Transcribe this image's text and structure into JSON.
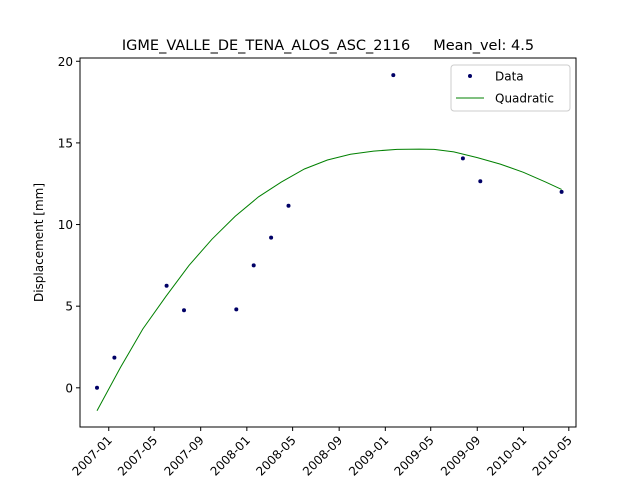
{
  "chart_data": {
    "type": "scatter",
    "title": "IGME_VALLE_DE_TENA_ALOS_ASC_2116     Mean_vel: 4.5",
    "xlabel": "",
    "ylabel": "Displacement [mm]",
    "xlim": [
      "2006-10-17",
      "2010-05-20"
    ],
    "ylim": [
      -2.4,
      20.2
    ],
    "x_ticks": [
      "2007-01",
      "2007-05",
      "2007-09",
      "2008-01",
      "2008-05",
      "2008-09",
      "2009-01",
      "2009-05",
      "2009-09",
      "2010-01",
      "2010-05"
    ],
    "y_ticks": [
      0,
      5,
      10,
      15,
      20
    ],
    "grid": false,
    "legend_position": "top-right",
    "colors": {
      "data": "#000066",
      "fit": "#008000"
    },
    "series": [
      {
        "name": "Data",
        "kind": "points",
        "x": [
          "2006-12-01",
          "2007-01-16",
          "2007-06-03",
          "2007-07-19",
          "2007-12-04",
          "2008-01-19",
          "2008-03-05",
          "2008-04-20",
          "2009-01-22",
          "2009-07-25",
          "2009-09-09",
          "2010-04-12"
        ],
        "y": [
          0.0,
          1.85,
          6.25,
          4.75,
          4.8,
          7.5,
          9.2,
          11.15,
          19.15,
          14.05,
          12.65,
          12.0
        ]
      },
      {
        "name": "Quadratic",
        "kind": "line",
        "x": [
          "2006-12-01",
          "2007-02-01",
          "2007-04-01",
          "2007-06-01",
          "2007-08-01",
          "2007-10-01",
          "2007-12-01",
          "2008-02-01",
          "2008-04-01",
          "2008-06-01",
          "2008-08-01",
          "2008-10-01",
          "2008-12-01",
          "2009-02-01",
          "2009-04-01",
          "2009-05-10",
          "2009-07-01",
          "2009-09-01",
          "2009-11-01",
          "2010-01-01",
          "2010-03-01",
          "2010-04-12"
        ],
        "y": [
          -1.4,
          1.25,
          3.6,
          5.6,
          7.5,
          9.1,
          10.5,
          11.7,
          12.6,
          13.4,
          13.95,
          14.3,
          14.5,
          14.6,
          14.62,
          14.6,
          14.45,
          14.1,
          13.7,
          13.2,
          12.6,
          12.15
        ]
      }
    ]
  }
}
